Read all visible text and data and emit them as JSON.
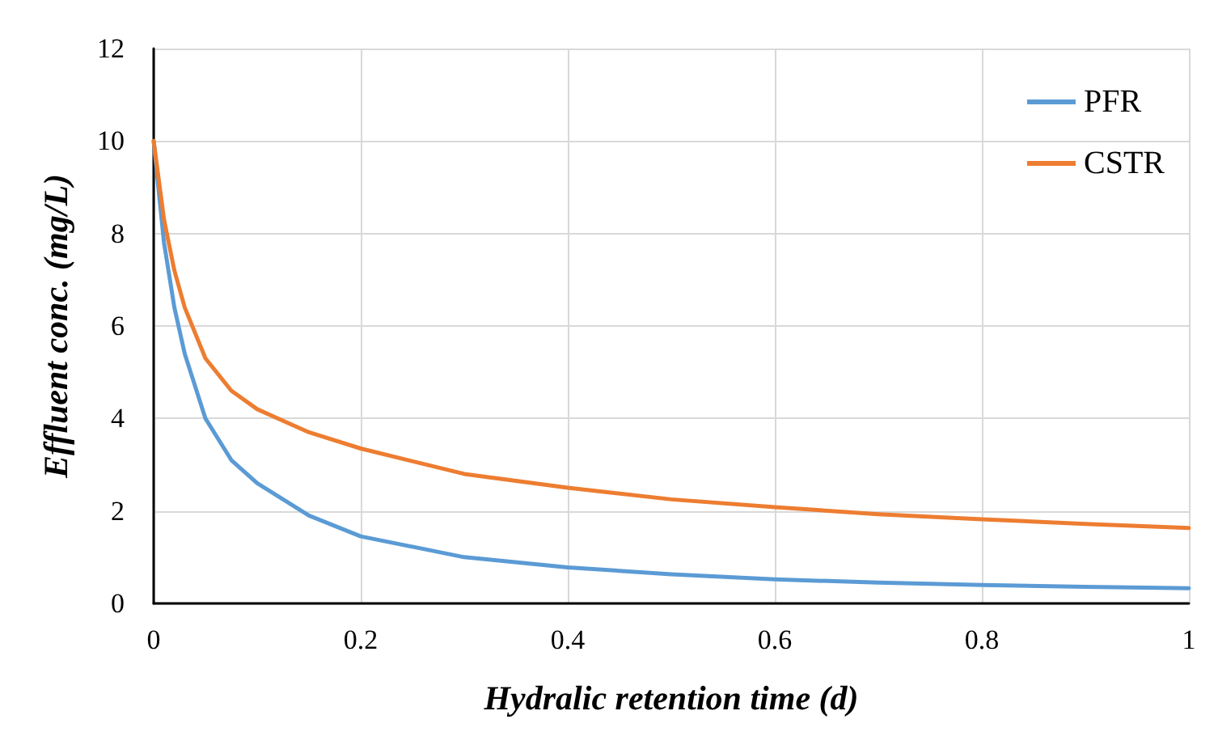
{
  "chart_data": {
    "type": "line",
    "xlabel": "Hydralic retention time (d)",
    "ylabel": "Effluent conc. (mg/L)",
    "x": [
      0,
      0.01,
      0.02,
      0.03,
      0.05,
      0.075,
      0.1,
      0.15,
      0.2,
      0.3,
      0.4,
      0.5,
      0.6,
      0.7,
      0.8,
      0.9,
      1
    ],
    "series": [
      {
        "name": "PFR",
        "color": "#5b9bd5",
        "values": [
          10,
          7.8,
          6.4,
          5.4,
          4.0,
          3.1,
          2.6,
          1.9,
          1.45,
          1.0,
          0.78,
          0.63,
          0.52,
          0.45,
          0.4,
          0.36,
          0.33
        ]
      },
      {
        "name": "CSTR",
        "color": "#ed7d31",
        "values": [
          10,
          8.3,
          7.2,
          6.4,
          5.3,
          4.6,
          4.2,
          3.7,
          3.35,
          2.8,
          2.5,
          2.25,
          2.08,
          1.93,
          1.82,
          1.72,
          1.63
        ]
      }
    ],
    "xlim": [
      0,
      1
    ],
    "xticks": [
      0,
      0.2,
      0.4,
      0.6,
      0.8,
      1
    ],
    "ylim": [
      0,
      12
    ],
    "yticks": [
      0,
      2,
      4,
      6,
      8,
      10,
      12
    ],
    "grid": true,
    "legend": "top right",
    "marker": "none",
    "line_style": "solid"
  }
}
